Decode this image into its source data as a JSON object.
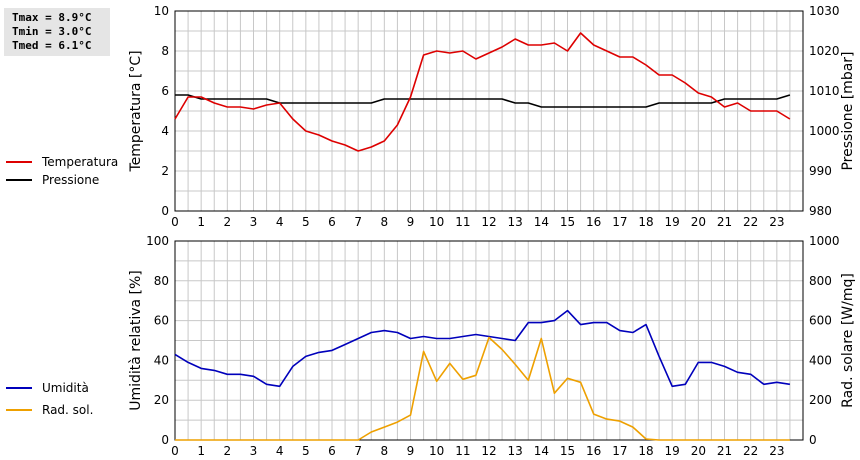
{
  "stats": [
    {
      "label": "Tmax",
      "value": "8.9°C"
    },
    {
      "label": "Tmin",
      "value": "3.0°C"
    },
    {
      "label": "Tmed",
      "value": "6.1°C"
    }
  ],
  "colors": {
    "temperature": "#dd0000",
    "pressure": "#000000",
    "humidity": "#0000bb",
    "solar": "#eea000",
    "grid": "#c8c8c8"
  },
  "chart_data": [
    {
      "type": "line",
      "ylabel": "Temperatura [°C]",
      "ylabel_right": "Pressione [mbar]",
      "xlim": [
        0,
        24
      ],
      "ylim": [
        0,
        10
      ],
      "ylim_right": [
        980,
        1030
      ],
      "x_ticks": [
        "0",
        "1",
        "2",
        "3",
        "4",
        "5",
        "6",
        "7",
        "8",
        "9",
        "10",
        "11",
        "12",
        "13",
        "14",
        "15",
        "16",
        "17",
        "18",
        "19",
        "20",
        "21",
        "22",
        "23"
      ],
      "y_ticks": [
        "0",
        "2",
        "4",
        "6",
        "8",
        "10"
      ],
      "y_ticks_right": [
        "980",
        "990",
        "1000",
        "1010",
        "1020",
        "1030"
      ],
      "grid": true,
      "legend": "left",
      "series": [
        {
          "name": "Temperatura",
          "axis": "left",
          "x": [
            0,
            0.5,
            1,
            1.5,
            2,
            2.5,
            3,
            3.5,
            4,
            4.5,
            5,
            5.5,
            6,
            6.5,
            7,
            7.5,
            8,
            8.5,
            9,
            9.5,
            10,
            10.5,
            11,
            11.5,
            12,
            12.5,
            13,
            13.5,
            14,
            14.5,
            15,
            15.5,
            16,
            16.5,
            17,
            17.5,
            18,
            18.5,
            19,
            19.5,
            20,
            20.5,
            21,
            21.5,
            22,
            22.5,
            23,
            23.5
          ],
          "values": [
            4.6,
            5.7,
            5.7,
            5.4,
            5.2,
            5.2,
            5.1,
            5.3,
            5.4,
            4.6,
            4.0,
            3.8,
            3.5,
            3.3,
            3.0,
            3.2,
            3.5,
            4.3,
            5.7,
            7.8,
            8.0,
            7.9,
            8.0,
            7.6,
            7.9,
            8.2,
            8.6,
            8.3,
            8.3,
            8.4,
            8.0,
            8.9,
            8.3,
            8.0,
            7.7,
            7.7,
            7.3,
            6.8,
            6.8,
            6.4,
            5.9,
            5.7,
            5.2,
            5.4,
            5.0,
            5.0,
            5.0,
            4.6
          ]
        },
        {
          "name": "Pressione",
          "axis": "right",
          "x": [
            0,
            0.5,
            1,
            1.5,
            2,
            2.5,
            3,
            3.5,
            4,
            4.5,
            5,
            5.5,
            6,
            6.5,
            7,
            7.5,
            8,
            8.5,
            9,
            9.5,
            10,
            10.5,
            11,
            11.5,
            12,
            12.5,
            13,
            13.5,
            14,
            14.5,
            15,
            15.5,
            16,
            16.5,
            17,
            17.5,
            18,
            18.5,
            19,
            19.5,
            20,
            20.5,
            21,
            21.5,
            22,
            22.5,
            23,
            23.5
          ],
          "values": [
            1009,
            1009,
            1008,
            1008,
            1008,
            1008,
            1008,
            1008,
            1007,
            1007,
            1007,
            1007,
            1007,
            1007,
            1007,
            1007,
            1008,
            1008,
            1008,
            1008,
            1008,
            1008,
            1008,
            1008,
            1008,
            1008,
            1007,
            1007,
            1006,
            1006,
            1006,
            1006,
            1006,
            1006,
            1006,
            1006,
            1006,
            1007,
            1007,
            1007,
            1007,
            1007,
            1008,
            1008,
            1008,
            1008,
            1008,
            1009
          ]
        }
      ]
    },
    {
      "type": "line",
      "ylabel": "Umidità relativa [%]",
      "ylabel_right": "Rad. solare [W/mq]",
      "xlim": [
        0,
        24
      ],
      "ylim": [
        0,
        100
      ],
      "ylim_right": [
        0,
        1000
      ],
      "x_ticks": [
        "0",
        "1",
        "2",
        "3",
        "4",
        "5",
        "6",
        "7",
        "8",
        "9",
        "10",
        "11",
        "12",
        "13",
        "14",
        "15",
        "16",
        "17",
        "18",
        "19",
        "20",
        "21",
        "22",
        "23"
      ],
      "y_ticks": [
        "0",
        "20",
        "40",
        "60",
        "80",
        "100"
      ],
      "y_ticks_right": [
        "0",
        "200",
        "400",
        "600",
        "800",
        "1000"
      ],
      "grid": true,
      "legend": "left",
      "series": [
        {
          "name": "Umidità",
          "axis": "left",
          "x": [
            0,
            0.5,
            1,
            1.5,
            2,
            2.5,
            3,
            3.5,
            4,
            4.5,
            5,
            5.5,
            6,
            6.5,
            7,
            7.5,
            8,
            8.5,
            9,
            9.5,
            10,
            10.5,
            11,
            11.5,
            12,
            12.5,
            13,
            13.5,
            14,
            14.5,
            15,
            15.5,
            16,
            16.5,
            17,
            17.5,
            18,
            18.5,
            19,
            19.5,
            20,
            20.5,
            21,
            21.5,
            22,
            22.5,
            23,
            23.5
          ],
          "values": [
            43,
            39,
            36,
            35,
            33,
            33,
            32,
            28,
            27,
            37,
            42,
            44,
            45,
            48,
            51,
            54,
            55,
            54,
            51,
            52,
            51,
            51,
            52,
            53,
            52,
            51,
            50,
            59,
            59,
            60,
            65,
            58,
            59,
            59,
            55,
            54,
            58,
            42,
            27,
            28,
            39,
            39,
            37,
            34,
            33,
            28,
            29,
            28
          ]
        },
        {
          "name": "Rad. sol.",
          "axis": "right",
          "x": [
            0,
            0.5,
            1,
            1.5,
            2,
            2.5,
            3,
            3.5,
            4,
            4.5,
            5,
            5.5,
            6,
            6.5,
            7,
            7.5,
            8,
            8.5,
            9,
            9.5,
            10,
            10.5,
            11,
            11.5,
            12,
            12.5,
            13,
            13.5,
            14,
            14.5,
            15,
            15.5,
            16,
            16.5,
            17,
            17.5,
            18,
            18.5,
            19,
            19.5,
            20,
            20.5,
            21,
            21.5,
            22,
            22.5,
            23,
            23.5
          ],
          "values": [
            0,
            0,
            0,
            0,
            0,
            0,
            0,
            0,
            0,
            0,
            0,
            0,
            0,
            0,
            0,
            40,
            65,
            90,
            125,
            445,
            295,
            385,
            305,
            325,
            515,
            455,
            380,
            300,
            510,
            235,
            310,
            290,
            130,
            105,
            95,
            65,
            5,
            0,
            0,
            0,
            0,
            0,
            0,
            0,
            0,
            0,
            0,
            0
          ]
        }
      ]
    }
  ]
}
